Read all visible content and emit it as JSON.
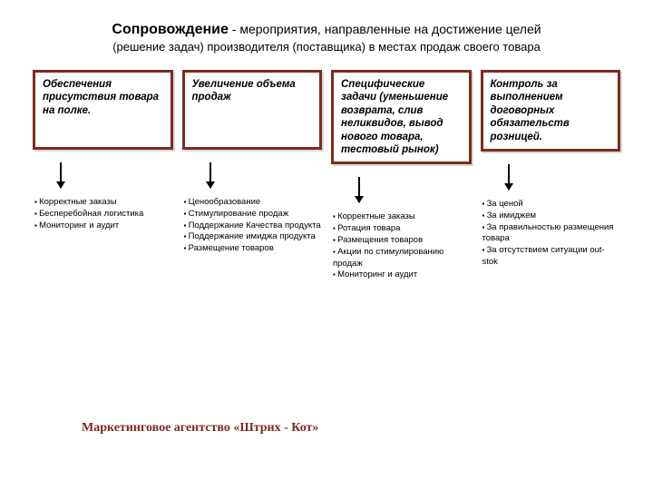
{
  "type": "flowchart",
  "background_color": "#ffffff",
  "box_border_color": "#7d2b1f",
  "footer_color": "#7d2b1f",
  "text_color": "#000000",
  "header": {
    "title_bold": "Сопровождение",
    "title_rest": " - мероприятия,  направленные на достижение целей",
    "subtitle": "(решение задач) производителя (поставщика) в местах продаж своего товара"
  },
  "columns": [
    {
      "box": "Обеспечения присутствия товара на полке.",
      "bullets": [
        "Корректные заказы",
        "Бесперебойная логистика",
        "Мониторинг и аудит"
      ]
    },
    {
      "box": "Увеличение объема продаж",
      "bullets": [
        "Ценообразование",
        "Стимулирование продаж",
        "Поддержание Качества продукта",
        "Поддержание имиджа продукта",
        "Размещение товаров"
      ]
    },
    {
      "box": "Специфические задачи (уменьшение возврата, слив неликвидов, вывод нового товара, тестовый рынок)",
      "bullets": [
        "Корректные заказы",
        "Ротация товара",
        "Размещения товаров",
        "Акции по стимулированию продаж",
        "Мониторинг и аудит"
      ]
    },
    {
      "box": "Контроль за выполнением договорных обязательств розницей.",
      "bullets": [
        "За ценой",
        "За имиджем",
        "За правильностью размещения товара",
        "За отсутствием ситуации out-stok"
      ]
    }
  ],
  "footer": "Маркетинговое агентство «Штрих - Кот»"
}
